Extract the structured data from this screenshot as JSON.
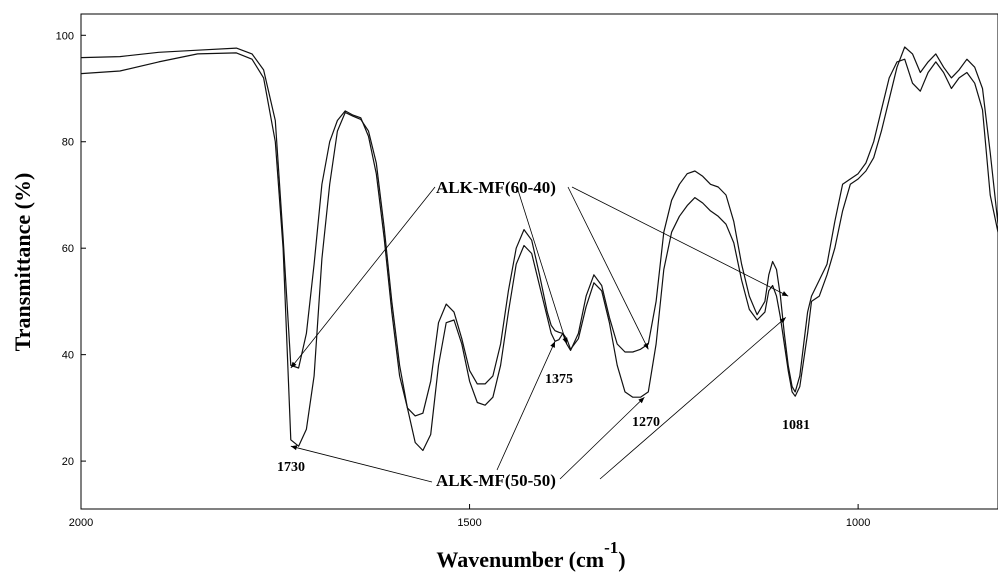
{
  "chart_data": {
    "type": "line",
    "title": "",
    "xlabel": "Wavenumber (cm",
    "xlabel_sup": "-1",
    "xlabel_end": ")",
    "ylabel": "Transmittance (%)",
    "xlim": [
      2000,
      820
    ],
    "ylim": [
      11,
      104
    ],
    "xticks": [
      2000,
      1500,
      1000
    ],
    "yticks": [
      20,
      40,
      60,
      80,
      100
    ],
    "grid": false,
    "legend": "none",
    "line_color": "#111111",
    "series": [
      {
        "id": "ALK-MF(50-50)",
        "x": [
          2000,
          1950,
          1900,
          1850,
          1800,
          1780,
          1765,
          1750,
          1740,
          1730,
          1720,
          1710,
          1700,
          1690,
          1680,
          1670,
          1660,
          1650,
          1640,
          1630,
          1620,
          1610,
          1600,
          1590,
          1580,
          1570,
          1560,
          1550,
          1540,
          1530,
          1520,
          1510,
          1500,
          1490,
          1480,
          1470,
          1460,
          1450,
          1440,
          1430,
          1420,
          1410,
          1400,
          1395,
          1390,
          1385,
          1380,
          1375,
          1370,
          1360,
          1350,
          1340,
          1330,
          1320,
          1310,
          1300,
          1290,
          1280,
          1270,
          1260,
          1250,
          1240,
          1230,
          1220,
          1210,
          1200,
          1190,
          1180,
          1170,
          1160,
          1150,
          1140,
          1130,
          1120,
          1115,
          1110,
          1105,
          1100,
          1095,
          1090,
          1085,
          1081,
          1075,
          1070,
          1065,
          1060,
          1050,
          1040,
          1030,
          1020,
          1010,
          1000,
          990,
          980,
          970,
          960,
          950,
          940,
          930,
          920,
          910,
          900,
          890,
          880,
          870,
          860,
          850,
          840,
          830,
          820
        ],
        "y": [
          92.8,
          93.3,
          95.0,
          96.5,
          96.7,
          95.5,
          92.0,
          80.0,
          60.0,
          24.0,
          22.8,
          26.0,
          36.0,
          58.0,
          72.0,
          82.0,
          85.5,
          84.8,
          84.2,
          82.0,
          76.0,
          64.0,
          50.0,
          38.0,
          30.0,
          23.5,
          22.0,
          25.0,
          38.0,
          46.0,
          46.5,
          42.0,
          35.0,
          31.0,
          30.5,
          32.0,
          38.0,
          48.0,
          57.0,
          60.5,
          59.0,
          53.0,
          47.0,
          44.0,
          42.5,
          42.8,
          44.0,
          43.0,
          41.0,
          43.0,
          49.0,
          53.5,
          52.0,
          46.0,
          38.0,
          33.0,
          32.0,
          32.0,
          33.0,
          42.0,
          56.0,
          63.0,
          66.0,
          68.0,
          69.5,
          68.5,
          67.0,
          66.0,
          64.5,
          61.0,
          54.0,
          48.5,
          46.5,
          48.0,
          52.0,
          53.0,
          51.0,
          47.0,
          42.0,
          37.0,
          33.0,
          32.2,
          34.0,
          39.0,
          44.0,
          50.0,
          51.0,
          55.0,
          60.0,
          67.0,
          72.0,
          73.0,
          74.5,
          77.0,
          82.0,
          88.0,
          94.0,
          97.8,
          96.5,
          93.0,
          95.0,
          96.5,
          94.0,
          92.0,
          93.5,
          95.5,
          94.0,
          90.0,
          78.0,
          64.5
        ]
      },
      {
        "id": "ALK-MF(60-40)",
        "x": [
          2000,
          1950,
          1900,
          1850,
          1800,
          1780,
          1765,
          1750,
          1740,
          1730,
          1720,
          1710,
          1700,
          1690,
          1680,
          1670,
          1660,
          1650,
          1640,
          1630,
          1620,
          1610,
          1600,
          1590,
          1580,
          1570,
          1560,
          1550,
          1540,
          1530,
          1520,
          1510,
          1500,
          1490,
          1480,
          1470,
          1460,
          1450,
          1440,
          1430,
          1420,
          1410,
          1400,
          1395,
          1390,
          1385,
          1380,
          1375,
          1370,
          1360,
          1350,
          1340,
          1330,
          1320,
          1310,
          1300,
          1290,
          1280,
          1270,
          1260,
          1250,
          1240,
          1230,
          1220,
          1210,
          1200,
          1190,
          1180,
          1170,
          1160,
          1150,
          1140,
          1130,
          1120,
          1115,
          1110,
          1105,
          1100,
          1095,
          1090,
          1085,
          1081,
          1075,
          1070,
          1065,
          1060,
          1050,
          1040,
          1030,
          1020,
          1010,
          1000,
          990,
          980,
          970,
          960,
          950,
          940,
          930,
          920,
          910,
          900,
          890,
          880,
          870,
          860,
          850,
          840,
          830,
          820
        ],
        "y": [
          95.8,
          96.0,
          96.8,
          97.2,
          97.6,
          96.5,
          93.5,
          84.0,
          62.0,
          38.0,
          37.5,
          44.0,
          57.0,
          72.0,
          80.0,
          84.0,
          85.8,
          85.0,
          84.5,
          81.0,
          74.0,
          62.0,
          48.0,
          36.0,
          30.0,
          28.5,
          29.0,
          35.0,
          46.0,
          49.5,
          48.0,
          43.0,
          37.0,
          34.5,
          34.5,
          36.0,
          42.0,
          52.0,
          60.0,
          63.5,
          61.5,
          55.0,
          48.0,
          45.5,
          44.5,
          44.2,
          44.0,
          42.0,
          40.8,
          44.0,
          51.0,
          55.0,
          53.0,
          47.0,
          42.0,
          40.5,
          40.5,
          41.0,
          42.0,
          50.0,
          63.0,
          69.0,
          72.0,
          74.0,
          74.5,
          73.5,
          72.0,
          71.5,
          70.0,
          65.0,
          57.0,
          51.0,
          47.5,
          50.0,
          55.0,
          57.5,
          56.0,
          51.0,
          44.0,
          38.0,
          34.0,
          33.0,
          36.0,
          42.0,
          48.0,
          51.0,
          54.0,
          57.0,
          65.0,
          72.0,
          73.0,
          74.0,
          76.0,
          80.0,
          86.0,
          92.0,
          95.0,
          95.5,
          91.0,
          89.5,
          93.0,
          95.0,
          93.0,
          90.0,
          92.0,
          93.0,
          91.0,
          86.0,
          70.0,
          63.0
        ]
      }
    ],
    "annotations": {
      "peak_1730": "1730",
      "peak_1375": "1375",
      "peak_1270": "1270",
      "peak_1081": "1081",
      "label_60_40": "ALK-MF(60-40)",
      "label_50_50": "ALK-MF(50-50)"
    },
    "arrow_targets": {
      "label_60_40": [
        [
          1730,
          37.5
        ],
        [
          1375,
          42.0
        ],
        [
          1270,
          41.0
        ],
        [
          1090,
          51.0
        ]
      ],
      "label_50_50": [
        [
          1730,
          22.8
        ],
        [
          1390,
          42.5
        ],
        [
          1275,
          32.0
        ],
        [
          1093,
          47.0
        ]
      ]
    }
  }
}
